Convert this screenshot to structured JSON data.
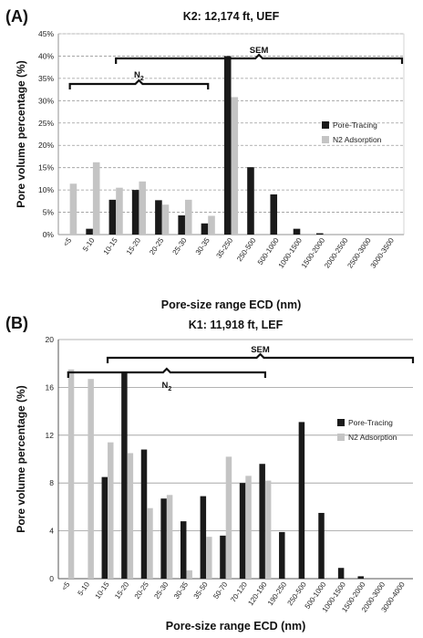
{
  "panels": [
    {
      "panel_label": "(A)",
      "title": "K2: 12,174 ft, UEF",
      "ylabel": "Pore volume percentage (%)",
      "xlabel": "Pore-size range ECD (nm)",
      "annotations": [
        {
          "text": "SEM",
          "from_category": "10-15",
          "to_category": "3000-3500"
        },
        {
          "text": "N",
          "subscript": "2",
          "from_category": "<5",
          "to_category": "30-35"
        }
      ]
    },
    {
      "panel_label": "(B)",
      "title": "K1: 11,918 ft, LEF",
      "ylabel": "Pore volume percentage (%)",
      "xlabel": "Pore-size range ECD (nm)",
      "annotations": [
        {
          "text": "SEM",
          "from_category": "10-15",
          "to_category": "3000-4000"
        },
        {
          "text": "N",
          "subscript": "2",
          "from_category": "<5",
          "to_category": "120-190"
        }
      ]
    }
  ],
  "chart_data": [
    {
      "type": "bar",
      "title": "K2: 12,174 ft, UEF",
      "xlabel": "Pore-size range ECD (nm)",
      "ylabel": "Pore volume percentage (%)",
      "ylim": [
        0,
        45
      ],
      "y_ticks": [
        "0%",
        "5%",
        "10%",
        "15%",
        "20%",
        "25%",
        "30%",
        "35%",
        "40%",
        "45%"
      ],
      "y_tick_values": [
        0,
        5,
        10,
        15,
        20,
        25,
        30,
        35,
        40,
        45
      ],
      "grid": "horizontal-dashed",
      "legend_position": "right",
      "categories": [
        "<5",
        "5-10",
        "10-15",
        "15-20",
        "20-25",
        "25-30",
        "30-35",
        "35-250",
        "250-500",
        "500-1000",
        "1000-1500",
        "1500-2000",
        "2000-2500",
        "2500-3000",
        "3000-3500"
      ],
      "series": [
        {
          "name": "Pore-Tracing",
          "color": "#1a1a1a",
          "values": [
            0,
            1.3,
            7.8,
            10.0,
            7.7,
            4.3,
            2.5,
            40.0,
            15.1,
            9.0,
            1.3,
            0.3,
            0,
            0,
            0
          ]
        },
        {
          "name": "N2 Adsorption",
          "color": "#c4c4c4",
          "values": [
            11.4,
            16.2,
            10.5,
            11.9,
            6.7,
            7.8,
            4.2,
            30.8,
            0,
            0,
            0,
            0,
            0,
            0,
            0
          ]
        }
      ]
    },
    {
      "type": "bar",
      "title": "K1: 11,918 ft, LEF",
      "xlabel": "Pore-size range ECD (nm)",
      "ylabel": "Pore volume percentage (%)",
      "ylim": [
        0,
        20
      ],
      "y_ticks": [
        "0",
        "4",
        "8",
        "12",
        "16",
        "20"
      ],
      "y_tick_values": [
        0,
        4,
        8,
        12,
        16,
        20
      ],
      "grid": "horizontal-solid",
      "legend_position": "right",
      "categories": [
        "<5",
        "5-10",
        "10-15",
        "15-20",
        "20-25",
        "25-30",
        "30-35",
        "35-50",
        "50-70",
        "70-120",
        "120-190",
        "190-250",
        "250-500",
        "500-1000",
        "1000-1500",
        "1500-2000",
        "2000-3000",
        "3000-4000"
      ],
      "series": [
        {
          "name": "Pore-Tracing",
          "color": "#1a1a1a",
          "values": [
            0,
            0,
            8.5,
            17.3,
            10.8,
            6.7,
            4.8,
            6.9,
            3.6,
            8.0,
            9.6,
            3.9,
            13.1,
            5.5,
            0.9,
            0.2,
            0,
            0
          ]
        },
        {
          "name": "N2 Adsorption",
          "color": "#c4c4c4",
          "values": [
            17.5,
            16.7,
            11.4,
            10.5,
            5.9,
            7.0,
            0.7,
            3.5,
            10.2,
            8.6,
            8.2,
            0,
            0,
            0,
            0,
            0,
            0,
            0
          ]
        }
      ]
    }
  ]
}
